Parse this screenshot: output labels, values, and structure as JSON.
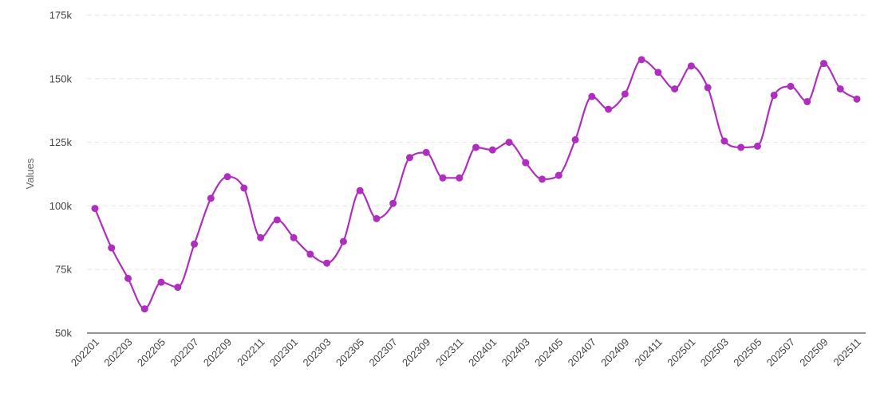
{
  "chart_data": {
    "type": "line",
    "title": "",
    "xlabel": "",
    "ylabel": "Values",
    "ylim": [
      50000,
      175000
    ],
    "yticks": [
      50000,
      75000,
      100000,
      125000,
      150000,
      175000
    ],
    "ytick_labels": [
      "50k",
      "75k",
      "100k",
      "125k",
      "150k",
      "175k"
    ],
    "grid": true,
    "legend": "none",
    "smooth": true,
    "colors": {
      "line": "#b02ebf",
      "point": "#b02ebf",
      "axis": "#555555",
      "grid": "#e6e6e6"
    },
    "x": [
      "202201",
      "202202",
      "202203",
      "202204",
      "202205",
      "202206",
      "202207",
      "202208",
      "202209",
      "202210",
      "202211",
      "202212",
      "202301",
      "202302",
      "202303",
      "202304",
      "202305",
      "202306",
      "202307",
      "202308",
      "202309",
      "202310",
      "202311",
      "202312",
      "202401",
      "202402",
      "202403",
      "202404",
      "202405",
      "202406",
      "202407",
      "202408",
      "202409",
      "202410",
      "202411",
      "202412",
      "202501",
      "202502",
      "202503",
      "202504",
      "202505",
      "202506",
      "202507",
      "202508",
      "202509",
      "202510",
      "202511"
    ],
    "xtick_labels": [
      "202201",
      "202203",
      "202205",
      "202207",
      "202209",
      "202211",
      "202301",
      "202303",
      "202305",
      "202307",
      "202309",
      "202311",
      "202401",
      "202403",
      "202405",
      "202407",
      "202409",
      "202411",
      "202501",
      "202503",
      "202505",
      "202507",
      "202509",
      "202511"
    ],
    "series": [
      {
        "values": [
          99000,
          83500,
          71500,
          59500,
          70000,
          68000,
          85000,
          103000,
          111500,
          107000,
          87500,
          94500,
          87500,
          81000,
          77500,
          86000,
          106000,
          95000,
          101000,
          119000,
          121000,
          111000,
          111000,
          123000,
          122000,
          125000,
          117000,
          110500,
          112000,
          126000,
          143000,
          138000,
          144000,
          157500,
          152500,
          146000,
          155000,
          146500,
          125500,
          123000,
          123500,
          143500,
          147000,
          141000,
          156000,
          146000,
          142000
        ]
      }
    ]
  }
}
